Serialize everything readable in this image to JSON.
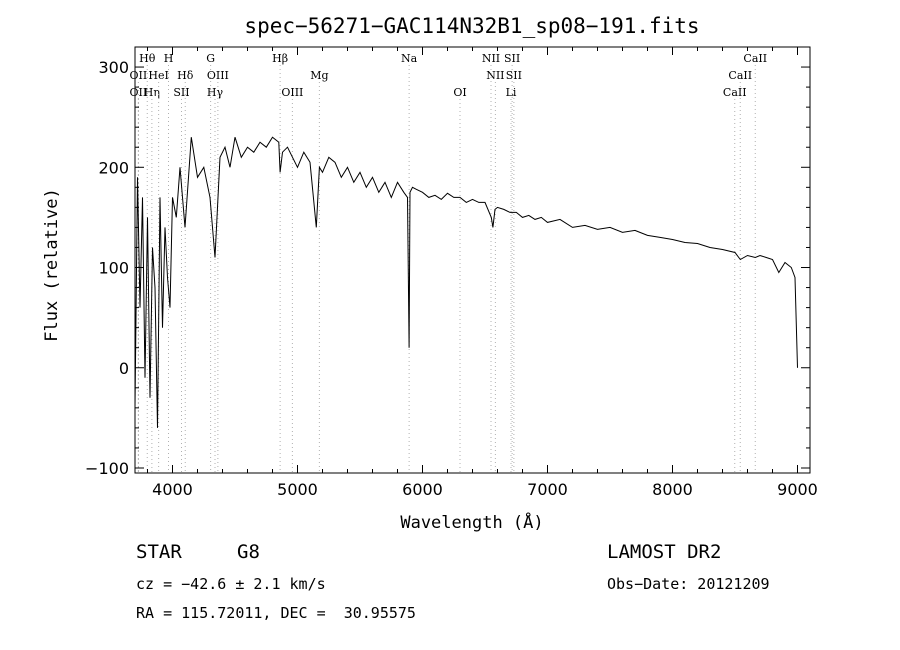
{
  "chart_data": {
    "type": "line",
    "title": "spec−56271−GAC114N32B1_sp08−191.fits",
    "xlabel": "Wavelength (Å)",
    "ylabel": "Flux (relative)",
    "xlim": [
      3700,
      9100
    ],
    "ylim": [
      -105,
      320
    ],
    "xticks": [
      4000,
      5000,
      6000,
      7000,
      8000,
      9000
    ],
    "yticks": [
      -100,
      0,
      100,
      200,
      300
    ],
    "ytick_labels": [
      "−100",
      "0",
      "100",
      "200",
      "300"
    ],
    "grid": false,
    "series": [
      {
        "x": [
          3700,
          3720,
          3740,
          3760,
          3780,
          3800,
          3820,
          3840,
          3860,
          3880,
          3900,
          3920,
          3940,
          3960,
          3980,
          4000,
          4030,
          4060,
          4100,
          4150,
          4200,
          4250,
          4300,
          4340,
          4380,
          4420,
          4460,
          4500,
          4550,
          4600,
          4650,
          4700,
          4750,
          4800,
          4850,
          4861,
          4880,
          4920,
          4960,
          5000,
          5050,
          5100,
          5150,
          5175,
          5200,
          5250,
          5300,
          5350,
          5400,
          5450,
          5500,
          5550,
          5600,
          5650,
          5700,
          5750,
          5800,
          5850,
          5880,
          5893,
          5900,
          5920,
          5950,
          6000,
          6050,
          6100,
          6150,
          6200,
          6250,
          6300,
          6350,
          6400,
          6450,
          6500,
          6550,
          6563,
          6580,
          6600,
          6650,
          6700,
          6750,
          6800,
          6850,
          6900,
          6950,
          7000,
          7100,
          7200,
          7300,
          7400,
          7500,
          7600,
          7700,
          7800,
          7900,
          8000,
          8100,
          8200,
          8300,
          8400,
          8500,
          8542,
          8600,
          8662,
          8700,
          8750,
          8800,
          8850,
          8900,
          8950,
          8980,
          9000
        ],
        "y": [
          -40,
          190,
          60,
          170,
          -10,
          150,
          -30,
          120,
          80,
          -60,
          170,
          40,
          140,
          90,
          60,
          170,
          150,
          200,
          140,
          230,
          190,
          200,
          170,
          110,
          210,
          220,
          200,
          230,
          210,
          220,
          215,
          225,
          220,
          230,
          225,
          195,
          215,
          220,
          210,
          200,
          215,
          205,
          140,
          200,
          195,
          210,
          205,
          190,
          200,
          185,
          195,
          180,
          190,
          175,
          185,
          170,
          185,
          175,
          170,
          20,
          175,
          180,
          178,
          175,
          170,
          172,
          168,
          174,
          170,
          170,
          165,
          168,
          165,
          165,
          150,
          140,
          158,
          160,
          158,
          155,
          155,
          150,
          152,
          148,
          150,
          145,
          148,
          140,
          142,
          138,
          140,
          135,
          137,
          132,
          130,
          128,
          125,
          124,
          120,
          118,
          115,
          108,
          112,
          110,
          112,
          110,
          108,
          95,
          105,
          100,
          90,
          0
        ]
      }
    ],
    "line_markers": [
      {
        "label": "OII",
        "wavelength": 3727,
        "row": 2
      },
      {
        "label": "Hθ",
        "wavelength": 3798,
        "row": 0
      },
      {
        "label": "OII",
        "wavelength": 3727,
        "row": 1
      },
      {
        "label": "Hη",
        "wavelength": 3835,
        "row": 2
      },
      {
        "label": "HeI",
        "wavelength": 3889,
        "row": 1
      },
      {
        "label": "H",
        "wavelength": 3968,
        "row": 0
      },
      {
        "label": "Hδ",
        "wavelength": 4102,
        "row": 1
      },
      {
        "label": "SII",
        "wavelength": 4072,
        "row": 2
      },
      {
        "label": "G",
        "wavelength": 4305,
        "row": 0
      },
      {
        "label": "OIII",
        "wavelength": 4363,
        "row": 1
      },
      {
        "label": "Hγ",
        "wavelength": 4340,
        "row": 2
      },
      {
        "label": "Hβ",
        "wavelength": 4861,
        "row": 0
      },
      {
        "label": "OIII",
        "wavelength": 4959,
        "row": 2
      },
      {
        "label": "Mg",
        "wavelength": 5175,
        "row": 1
      },
      {
        "label": "Na",
        "wavelength": 5893,
        "row": 0
      },
      {
        "label": "OI",
        "wavelength": 6300,
        "row": 2
      },
      {
        "label": "NII",
        "wavelength": 6548,
        "row": 0
      },
      {
        "label": "SII",
        "wavelength": 6717,
        "row": 0
      },
      {
        "label": "NII",
        "wavelength": 6583,
        "row": 1
      },
      {
        "label": "SII",
        "wavelength": 6731,
        "row": 1
      },
      {
        "label": "Li",
        "wavelength": 6708,
        "row": 2
      },
      {
        "label": "CaII",
        "wavelength": 8662,
        "row": 0
      },
      {
        "label": "CaII",
        "wavelength": 8542,
        "row": 1
      },
      {
        "label": "CaII",
        "wavelength": 8498,
        "row": 2
      }
    ]
  },
  "info": {
    "object_class": "STAR",
    "subclass": "G8",
    "survey": "LAMOST DR2",
    "cz": "cz = −42.6 ± 2.1 km/s",
    "obs_date": "Obs−Date: 20121209",
    "coords": "RA = 115.72011, DEC =  30.95575"
  }
}
